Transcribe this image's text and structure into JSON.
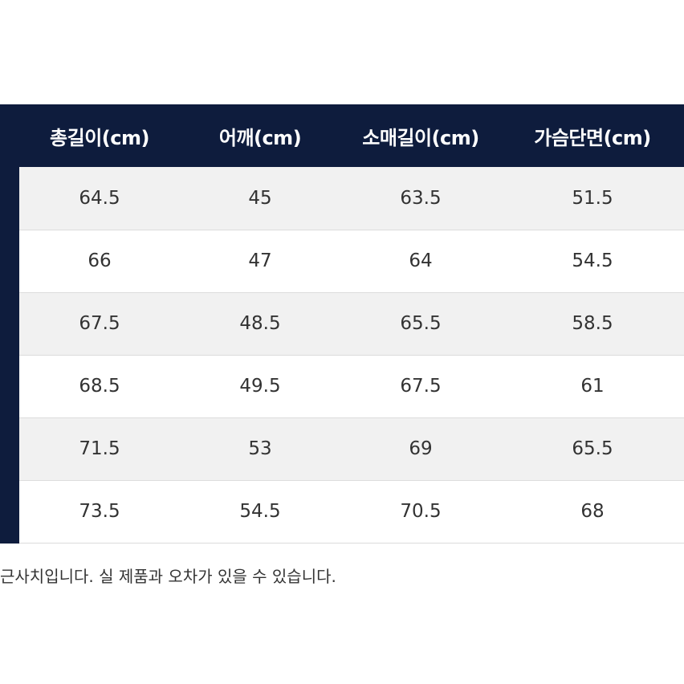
{
  "table": {
    "headers": [
      "총길이(cm)",
      "어깨(cm)",
      "소매길이(cm)",
      "가슴단면(cm)"
    ],
    "rows": [
      [
        "64.5",
        "45",
        "63.5",
        "51.5"
      ],
      [
        "66",
        "47",
        "64",
        "54.5"
      ],
      [
        "67.5",
        "48.5",
        "65.5",
        "58.5"
      ],
      [
        "68.5",
        "49.5",
        "67.5",
        "61"
      ],
      [
        "71.5",
        "53",
        "69",
        "65.5"
      ],
      [
        "73.5",
        "54.5",
        "70.5",
        "68"
      ]
    ]
  },
  "footnote": "근사치입니다. 실 제품과 오차가 있을 수 있습니다.",
  "colors": {
    "header_bg": "#0e1c3d",
    "stripe_bg": "#f1f1f1"
  }
}
